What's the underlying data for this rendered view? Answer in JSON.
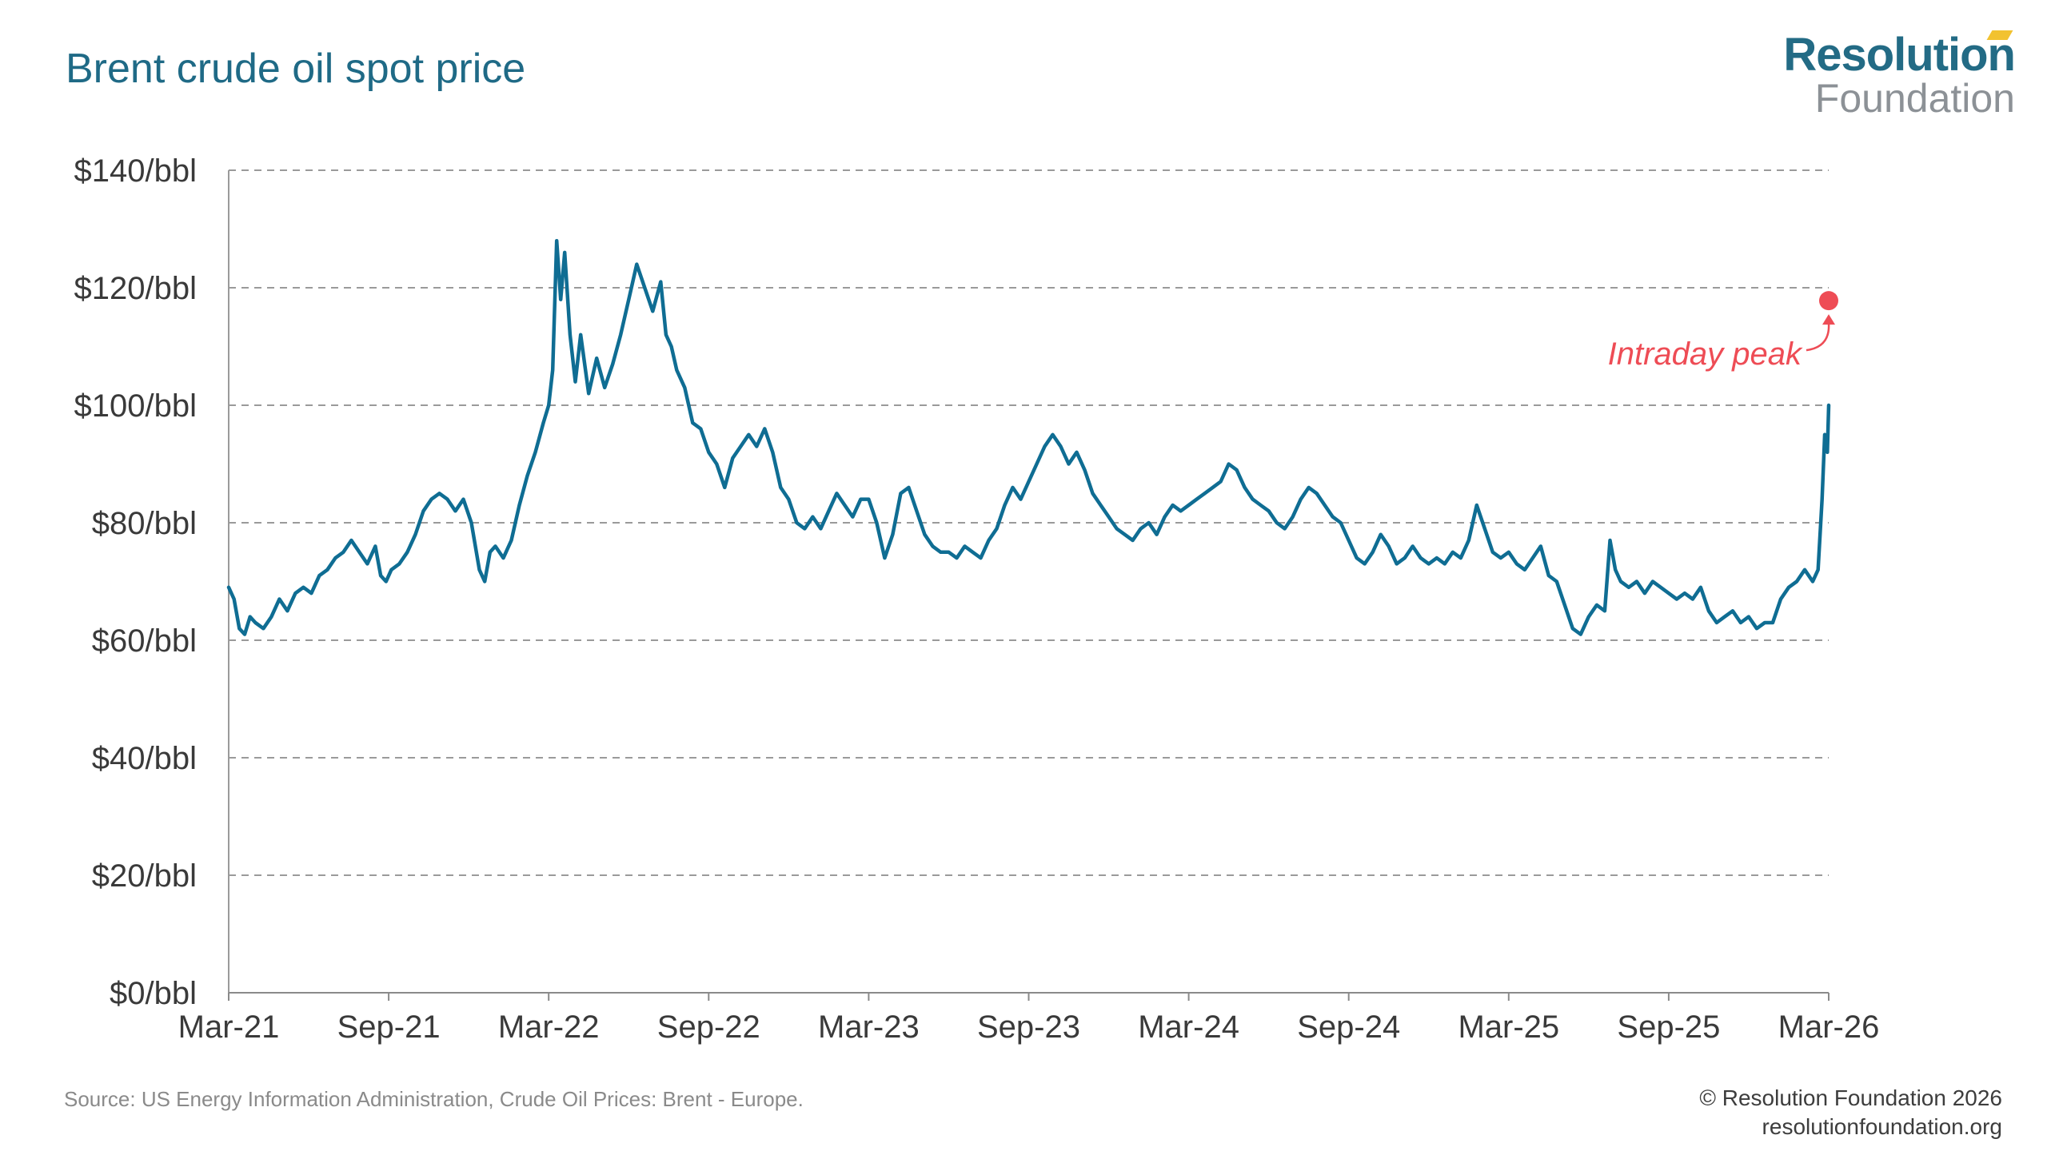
{
  "header": {
    "title": "Brent crude oil spot price"
  },
  "logo": {
    "line1": "Resolution",
    "line2": "Foundation",
    "accent_color": "#f2c230",
    "primary_color": "#236b85"
  },
  "footer": {
    "source": "Source: US Energy Information Administration, Crude Oil Prices: Brent - Europe.",
    "copyright": "© Resolution Foundation 2026",
    "website": "resolutionfoundation.org"
  },
  "chart_data": {
    "type": "line",
    "title": "Brent crude oil spot price",
    "xlabel": "",
    "ylabel": "",
    "unit": "$/bbl",
    "ylim": [
      0,
      140
    ],
    "yticks": [
      0,
      20,
      40,
      60,
      80,
      100,
      120,
      140
    ],
    "ytick_labels": [
      "$0/bbl",
      "$20/bbl",
      "$40/bbl",
      "$60/bbl",
      "$80/bbl",
      "$100/bbl",
      "$120/bbl",
      "$140/bbl"
    ],
    "grid": true,
    "xlim": [
      0,
      60
    ],
    "x_unit": "months since Mar-21",
    "xticks": [
      0,
      6,
      12,
      18,
      24,
      30,
      36,
      42,
      48,
      54,
      60
    ],
    "xtick_labels": [
      "Mar-21",
      "Sep-21",
      "Mar-22",
      "Sep-22",
      "Mar-23",
      "Sep-23",
      "Mar-24",
      "Sep-24",
      "Mar-25",
      "Sep-25",
      "Mar-26"
    ],
    "line_color": "#0f6d93",
    "series": [
      {
        "name": "Brent spot price",
        "points": [
          [
            0.0,
            69
          ],
          [
            0.2,
            67
          ],
          [
            0.4,
            62
          ],
          [
            0.6,
            61
          ],
          [
            0.8,
            64
          ],
          [
            1.0,
            63
          ],
          [
            1.3,
            62
          ],
          [
            1.6,
            64
          ],
          [
            1.9,
            67
          ],
          [
            2.2,
            65
          ],
          [
            2.5,
            68
          ],
          [
            2.8,
            69
          ],
          [
            3.1,
            68
          ],
          [
            3.4,
            71
          ],
          [
            3.7,
            72
          ],
          [
            4.0,
            74
          ],
          [
            4.3,
            75
          ],
          [
            4.6,
            77
          ],
          [
            4.9,
            75
          ],
          [
            5.2,
            73
          ],
          [
            5.5,
            76
          ],
          [
            5.7,
            71
          ],
          [
            5.9,
            70
          ],
          [
            6.1,
            72
          ],
          [
            6.4,
            73
          ],
          [
            6.7,
            75
          ],
          [
            7.0,
            78
          ],
          [
            7.3,
            82
          ],
          [
            7.6,
            84
          ],
          [
            7.9,
            85
          ],
          [
            8.2,
            84
          ],
          [
            8.5,
            82
          ],
          [
            8.8,
            84
          ],
          [
            9.1,
            80
          ],
          [
            9.4,
            72
          ],
          [
            9.6,
            70
          ],
          [
            9.8,
            75
          ],
          [
            10.0,
            76
          ],
          [
            10.3,
            74
          ],
          [
            10.6,
            77
          ],
          [
            10.9,
            83
          ],
          [
            11.2,
            88
          ],
          [
            11.5,
            92
          ],
          [
            11.8,
            97
          ],
          [
            12.0,
            100
          ],
          [
            12.15,
            106
          ],
          [
            12.3,
            128
          ],
          [
            12.45,
            118
          ],
          [
            12.6,
            126
          ],
          [
            12.8,
            112
          ],
          [
            13.0,
            104
          ],
          [
            13.2,
            112
          ],
          [
            13.5,
            102
          ],
          [
            13.8,
            108
          ],
          [
            14.1,
            103
          ],
          [
            14.4,
            107
          ],
          [
            14.7,
            112
          ],
          [
            15.0,
            118
          ],
          [
            15.3,
            124
          ],
          [
            15.6,
            120
          ],
          [
            15.9,
            116
          ],
          [
            16.2,
            121
          ],
          [
            16.4,
            112
          ],
          [
            16.6,
            110
          ],
          [
            16.8,
            106
          ],
          [
            17.1,
            103
          ],
          [
            17.4,
            97
          ],
          [
            17.7,
            96
          ],
          [
            18.0,
            92
          ],
          [
            18.3,
            90
          ],
          [
            18.6,
            86
          ],
          [
            18.9,
            91
          ],
          [
            19.2,
            93
          ],
          [
            19.5,
            95
          ],
          [
            19.8,
            93
          ],
          [
            20.1,
            96
          ],
          [
            20.4,
            92
          ],
          [
            20.7,
            86
          ],
          [
            21.0,
            84
          ],
          [
            21.3,
            80
          ],
          [
            21.6,
            79
          ],
          [
            21.9,
            81
          ],
          [
            22.2,
            79
          ],
          [
            22.5,
            82
          ],
          [
            22.8,
            85
          ],
          [
            23.1,
            83
          ],
          [
            23.4,
            81
          ],
          [
            23.7,
            84
          ],
          [
            24.0,
            84
          ],
          [
            24.3,
            80
          ],
          [
            24.6,
            74
          ],
          [
            24.9,
            78
          ],
          [
            25.2,
            85
          ],
          [
            25.5,
            86
          ],
          [
            25.8,
            82
          ],
          [
            26.1,
            78
          ],
          [
            26.4,
            76
          ],
          [
            26.7,
            75
          ],
          [
            27.0,
            75
          ],
          [
            27.3,
            74
          ],
          [
            27.6,
            76
          ],
          [
            27.9,
            75
          ],
          [
            28.2,
            74
          ],
          [
            28.5,
            77
          ],
          [
            28.8,
            79
          ],
          [
            29.1,
            83
          ],
          [
            29.4,
            86
          ],
          [
            29.7,
            84
          ],
          [
            30.0,
            87
          ],
          [
            30.3,
            90
          ],
          [
            30.6,
            93
          ],
          [
            30.9,
            95
          ],
          [
            31.2,
            93
          ],
          [
            31.5,
            90
          ],
          [
            31.8,
            92
          ],
          [
            32.1,
            89
          ],
          [
            32.4,
            85
          ],
          [
            32.7,
            83
          ],
          [
            33.0,
            81
          ],
          [
            33.3,
            79
          ],
          [
            33.6,
            78
          ],
          [
            33.9,
            77
          ],
          [
            34.2,
            79
          ],
          [
            34.5,
            80
          ],
          [
            34.8,
            78
          ],
          [
            35.1,
            81
          ],
          [
            35.4,
            83
          ],
          [
            35.7,
            82
          ],
          [
            36.0,
            83
          ],
          [
            36.3,
            84
          ],
          [
            36.6,
            85
          ],
          [
            36.9,
            86
          ],
          [
            37.2,
            87
          ],
          [
            37.5,
            90
          ],
          [
            37.8,
            89
          ],
          [
            38.1,
            86
          ],
          [
            38.4,
            84
          ],
          [
            38.7,
            83
          ],
          [
            39.0,
            82
          ],
          [
            39.3,
            80
          ],
          [
            39.6,
            79
          ],
          [
            39.9,
            81
          ],
          [
            40.2,
            84
          ],
          [
            40.5,
            86
          ],
          [
            40.8,
            85
          ],
          [
            41.1,
            83
          ],
          [
            41.4,
            81
          ],
          [
            41.7,
            80
          ],
          [
            42.0,
            77
          ],
          [
            42.3,
            74
          ],
          [
            42.6,
            73
          ],
          [
            42.9,
            75
          ],
          [
            43.2,
            78
          ],
          [
            43.5,
            76
          ],
          [
            43.8,
            73
          ],
          [
            44.1,
            74
          ],
          [
            44.4,
            76
          ],
          [
            44.7,
            74
          ],
          [
            45.0,
            73
          ],
          [
            45.3,
            74
          ],
          [
            45.6,
            73
          ],
          [
            45.9,
            75
          ],
          [
            46.2,
            74
          ],
          [
            46.5,
            77
          ],
          [
            46.8,
            83
          ],
          [
            47.1,
            79
          ],
          [
            47.4,
            75
          ],
          [
            47.7,
            74
          ],
          [
            48.0,
            75
          ],
          [
            48.3,
            73
          ],
          [
            48.6,
            72
          ],
          [
            48.9,
            74
          ],
          [
            49.2,
            76
          ],
          [
            49.5,
            71
          ],
          [
            49.8,
            70
          ],
          [
            50.1,
            66
          ],
          [
            50.4,
            62
          ],
          [
            50.7,
            61
          ],
          [
            51.0,
            64
          ],
          [
            51.3,
            66
          ],
          [
            51.6,
            65
          ],
          [
            51.8,
            77
          ],
          [
            52.0,
            72
          ],
          [
            52.2,
            70
          ],
          [
            52.5,
            69
          ],
          [
            52.8,
            70
          ],
          [
            53.1,
            68
          ],
          [
            53.4,
            70
          ],
          [
            53.7,
            69
          ],
          [
            54.0,
            68
          ],
          [
            54.3,
            67
          ],
          [
            54.6,
            68
          ],
          [
            54.9,
            67
          ],
          [
            55.2,
            69
          ],
          [
            55.5,
            65
          ],
          [
            55.8,
            63
          ],
          [
            56.1,
            64
          ],
          [
            56.4,
            65
          ],
          [
            56.7,
            63
          ],
          [
            57.0,
            64
          ],
          [
            57.3,
            62
          ],
          [
            57.6,
            63
          ],
          [
            57.9,
            63
          ],
          [
            58.2,
            67
          ],
          [
            58.5,
            69
          ],
          [
            58.8,
            70
          ],
          [
            59.1,
            72
          ],
          [
            59.4,
            70
          ],
          [
            59.6,
            72
          ],
          [
            59.75,
            84
          ],
          [
            59.85,
            95
          ],
          [
            59.95,
            92
          ],
          [
            60.0,
            100
          ]
        ]
      }
    ],
    "annotations": [
      {
        "label": "Intraday peak",
        "x": 60.0,
        "y": 117.8,
        "color": "#ee4c55"
      }
    ]
  }
}
